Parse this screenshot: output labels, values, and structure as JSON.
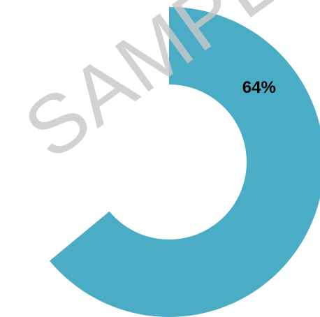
{
  "chart_data": {
    "type": "pie",
    "style": "donut",
    "categories": [
      "",
      ""
    ],
    "values": [
      64,
      36
    ],
    "data_labels": [
      "64%",
      ""
    ],
    "colors": [
      "#4bacc6",
      "#ffffff"
    ],
    "legend": "none"
  },
  "watermark": {
    "text": "SAMPLE"
  }
}
